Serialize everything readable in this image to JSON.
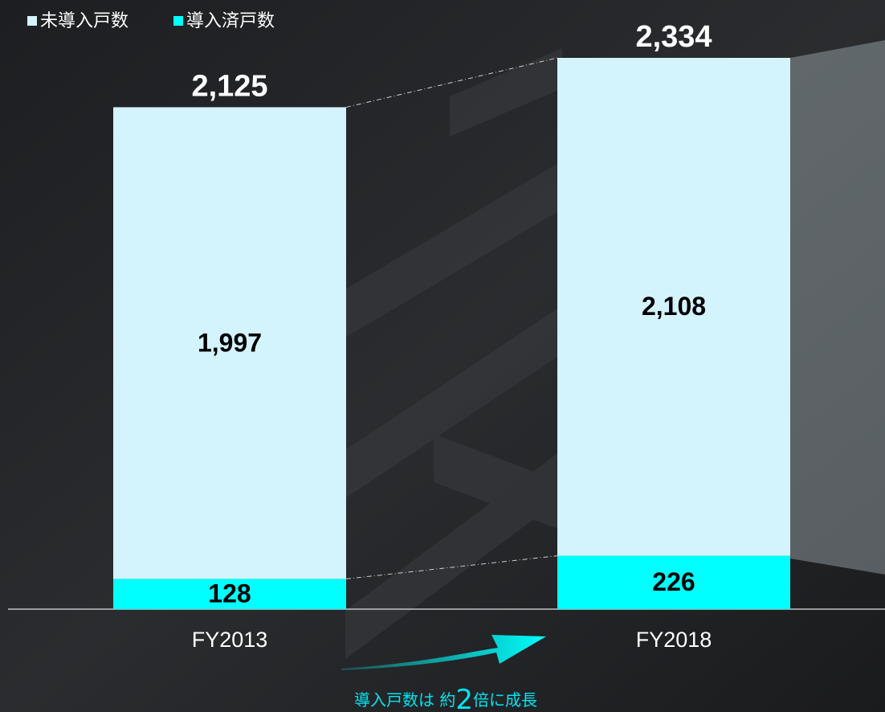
{
  "chart_data": {
    "type": "stacked-bar",
    "categories": [
      "FY2013",
      "FY2018"
    ],
    "series": [
      {
        "name": "未導入戸数",
        "color": "#d3f3fd",
        "values": [
          1997,
          2108
        ],
        "value_labels": [
          "1,997",
          "2,108"
        ]
      },
      {
        "name": "導入済戸数",
        "color": "#00ffff",
        "values": [
          128,
          226
        ]
      }
    ],
    "totals": [
      2125,
      2334
    ],
    "total_labels": [
      "2,125",
      "2,334"
    ],
    "annotation": [
      "導入戸数は 約",
      "2",
      "倍に成長"
    ]
  }
}
